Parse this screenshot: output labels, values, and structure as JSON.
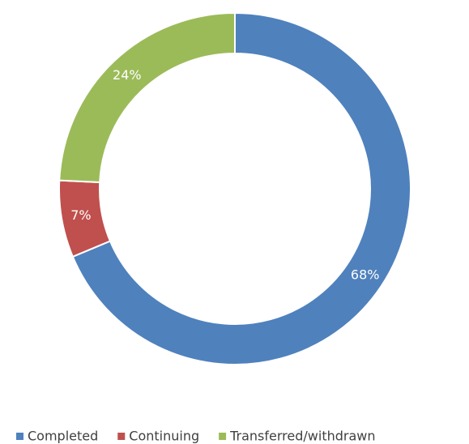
{
  "chart_data": {
    "type": "donut",
    "categories": [
      "Completed",
      "Continuing",
      "Transferred/withdrawn"
    ],
    "values": [
      68,
      7,
      24
    ],
    "value_labels": [
      "68%",
      "7%",
      "24%"
    ],
    "colors": [
      "#4f81bd",
      "#c0504d",
      "#9bbb59"
    ],
    "legend": "bottom"
  }
}
